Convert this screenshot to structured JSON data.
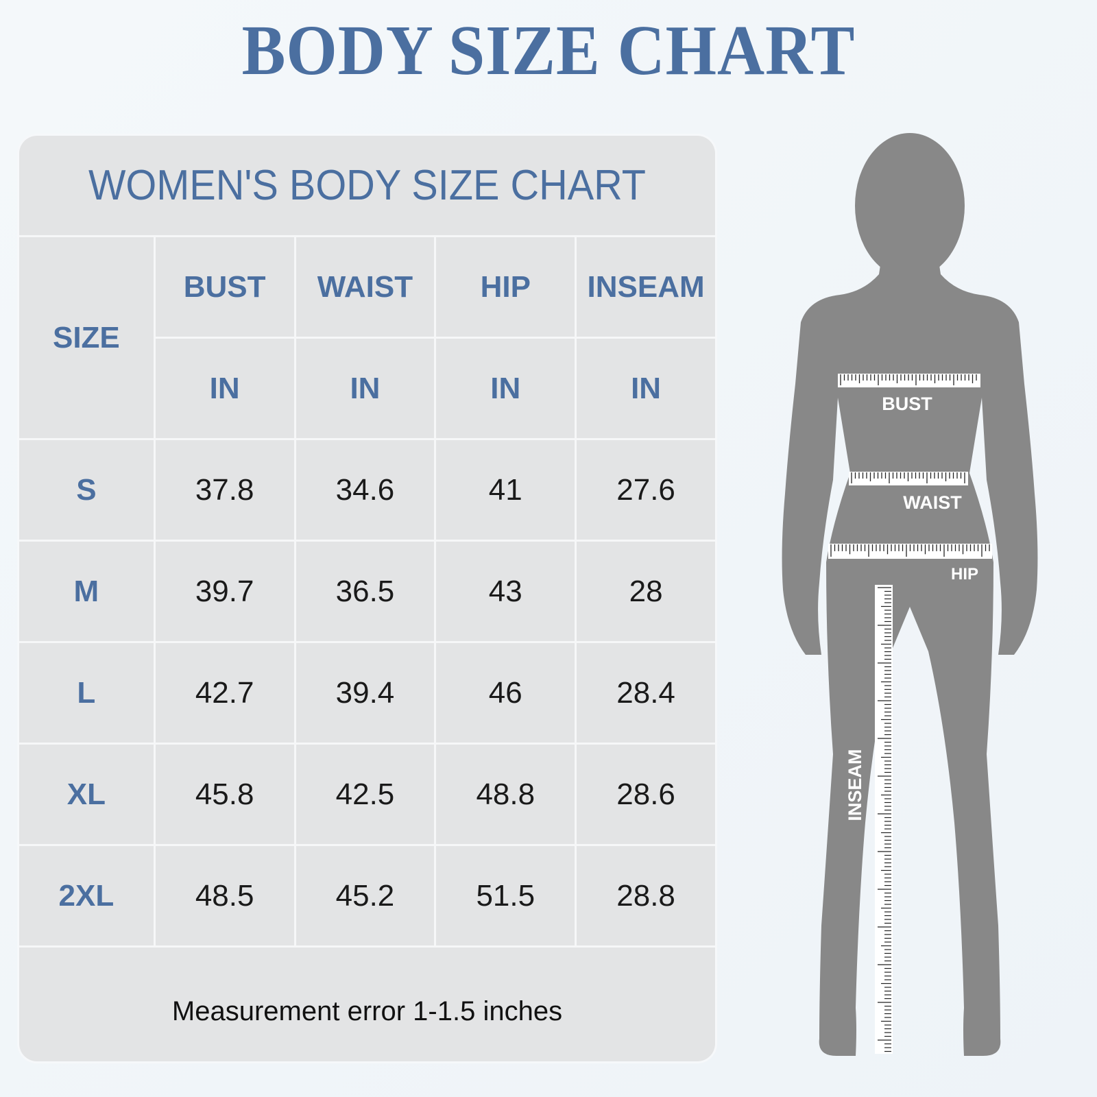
{
  "title": "BODY SIZE CHART",
  "table": {
    "title": "WOMEN'S BODY SIZE CHART",
    "size_header": "SIZE",
    "columns": [
      "BUST",
      "WAIST",
      "HIP",
      "INSEAM"
    ],
    "units": [
      "IN",
      "IN",
      "IN",
      "IN"
    ],
    "rows": [
      {
        "size": "S",
        "values": [
          "37.8",
          "34.6",
          "41",
          "27.6"
        ]
      },
      {
        "size": "M",
        "values": [
          "39.7",
          "36.5",
          "43",
          "28"
        ]
      },
      {
        "size": "L",
        "values": [
          "42.7",
          "39.4",
          "46",
          "28.4"
        ]
      },
      {
        "size": "XL",
        "values": [
          "45.8",
          "42.5",
          "48.8",
          "28.6"
        ]
      },
      {
        "size": "2XL",
        "values": [
          "48.5",
          "45.2",
          "51.5",
          "28.8"
        ]
      }
    ],
    "footer": "Measurement error 1-1.5 inches"
  },
  "figure": {
    "labels": {
      "bust": "BUST",
      "waist": "WAIST",
      "hip": "HIP",
      "inseam": "INSEAM"
    },
    "silhouette_color": "#888888"
  },
  "colors": {
    "accent": "#4b6fa0",
    "cell_bg": "#e3e4e5"
  }
}
